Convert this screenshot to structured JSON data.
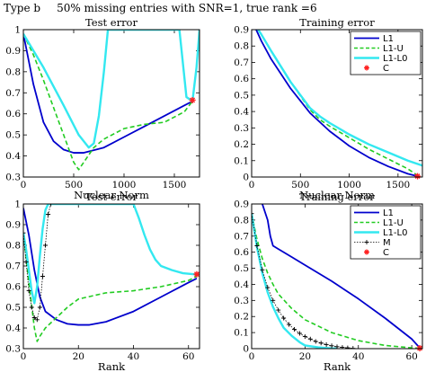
{
  "figure": {
    "type_label": "Type b",
    "caption": "50% missing entries with SNR=1, true rank =6"
  },
  "colors": {
    "L1": "#0000cc",
    "L1-U": "#22cc22",
    "L1-L0": "#33e8f0",
    "M": "#000000",
    "C": "#ff2222"
  },
  "chart_data": [
    {
      "id": "p1",
      "type": "line",
      "title": "Test error",
      "xlabel": "Nuclear Norm",
      "ylabel": "",
      "xlim": [
        0,
        1750
      ],
      "ylim": [
        0.3,
        1.0
      ],
      "xticks": [
        0,
        500,
        1000,
        1500
      ],
      "yticks": [
        0.3,
        0.4,
        0.5,
        0.6,
        0.7,
        0.8,
        0.9,
        1
      ],
      "ytick_labels": [
        "0.3",
        "0.4",
        "0.5",
        "0.6",
        "0.7",
        "0.8",
        "0.9",
        "1"
      ],
      "series": [
        {
          "name": "L1",
          "style": "solid",
          "x": [
            0,
            100,
            200,
            300,
            400,
            500,
            600,
            800,
            1000,
            1200,
            1400,
            1600,
            1680
          ],
          "y": [
            0.98,
            0.74,
            0.56,
            0.47,
            0.43,
            0.415,
            0.415,
            0.44,
            0.49,
            0.54,
            0.59,
            0.64,
            0.66
          ]
        },
        {
          "name": "L1-U",
          "style": "dashed",
          "x": [
            0,
            100,
            200,
            300,
            400,
            500,
            550,
            600,
            700,
            800,
            1000,
            1200,
            1400,
            1600,
            1680
          ],
          "y": [
            0.98,
            0.88,
            0.76,
            0.63,
            0.5,
            0.37,
            0.335,
            0.37,
            0.44,
            0.48,
            0.53,
            0.55,
            0.56,
            0.61,
            0.66
          ]
        },
        {
          "name": "L1-L0",
          "style": "solid",
          "x": [
            0,
            200,
            400,
            550,
            650,
            700,
            750,
            800,
            840,
            1550,
            1620,
            1680,
            1720,
            1750
          ],
          "y": [
            0.98,
            0.82,
            0.64,
            0.5,
            0.44,
            0.46,
            0.59,
            0.8,
            1.0,
            1.0,
            0.68,
            0.66,
            0.82,
            1.0
          ]
        }
      ],
      "markers": [
        {
          "name": "C",
          "x": 1680,
          "y": 0.665
        }
      ]
    },
    {
      "id": "p2",
      "type": "line",
      "title": "Training error",
      "xlabel": "Nuclear Norm",
      "ylabel": "",
      "xlim": [
        0,
        1750
      ],
      "ylim": [
        0,
        0.9
      ],
      "xticks": [
        0,
        500,
        1000,
        1500
      ],
      "yticks": [
        0,
        0.1,
        0.2,
        0.3,
        0.4,
        0.5,
        0.6,
        0.7,
        0.8,
        0.9
      ],
      "ytick_labels": [
        "0",
        "0.1",
        "0.2",
        "0.3",
        "0.4",
        "0.5",
        "0.6",
        "0.7",
        "0.8",
        "0.9"
      ],
      "legend": [
        "L1",
        "L1-U",
        "L1-L0",
        "C"
      ],
      "legend_position": "top-right",
      "series": [
        {
          "name": "L1",
          "style": "solid",
          "x": [
            0,
            100,
            200,
            400,
            600,
            800,
            1000,
            1200,
            1400,
            1600,
            1700
          ],
          "y": [
            0.96,
            0.83,
            0.72,
            0.54,
            0.39,
            0.28,
            0.19,
            0.12,
            0.065,
            0.02,
            0.005
          ]
        },
        {
          "name": "L1-U",
          "style": "dashed",
          "x": [
            0,
            100,
            200,
            400,
            600,
            700,
            800,
            1000,
            1200,
            1400,
            1600,
            1700
          ],
          "y": [
            0.96,
            0.87,
            0.77,
            0.58,
            0.41,
            0.35,
            0.31,
            0.24,
            0.17,
            0.11,
            0.05,
            0.01
          ]
        },
        {
          "name": "L1-L0",
          "style": "solid",
          "x": [
            0,
            100,
            200,
            400,
            600,
            700,
            800,
            1000,
            1200,
            1400,
            1600,
            1750
          ],
          "y": [
            0.96,
            0.87,
            0.77,
            0.58,
            0.42,
            0.37,
            0.33,
            0.26,
            0.2,
            0.15,
            0.1,
            0.07
          ]
        }
      ],
      "markers": [
        {
          "name": "C",
          "x": 1700,
          "y": 0.005
        }
      ]
    },
    {
      "id": "p3",
      "type": "line",
      "title": "Test error",
      "xlabel": "Rank",
      "ylabel": "",
      "xlim": [
        0,
        64
      ],
      "ylim": [
        0.3,
        1.0
      ],
      "xticks": [
        0,
        20,
        40,
        60
      ],
      "yticks": [
        0.3,
        0.4,
        0.5,
        0.6,
        0.7,
        0.8,
        0.9,
        1
      ],
      "ytick_labels": [
        "0.3",
        "0.4",
        "0.5",
        "0.6",
        "0.7",
        "0.8",
        "0.9",
        "1"
      ],
      "series": [
        {
          "name": "L1",
          "style": "solid",
          "x": [
            0,
            2,
            4,
            6,
            8,
            12,
            16,
            20,
            24,
            30,
            40,
            50,
            60,
            63
          ],
          "y": [
            0.98,
            0.85,
            0.68,
            0.55,
            0.48,
            0.44,
            0.42,
            0.415,
            0.415,
            0.43,
            0.48,
            0.55,
            0.62,
            0.64
          ]
        },
        {
          "name": "L1-U",
          "style": "dashed",
          "x": [
            0,
            2,
            4,
            5,
            6,
            8,
            12,
            16,
            20,
            30,
            40,
            50,
            60,
            63
          ],
          "y": [
            0.86,
            0.62,
            0.4,
            0.335,
            0.36,
            0.4,
            0.45,
            0.5,
            0.54,
            0.57,
            0.58,
            0.6,
            0.63,
            0.65
          ]
        },
        {
          "name": "L1-L0",
          "style": "solid",
          "x": [
            0,
            1,
            2,
            3,
            4,
            5,
            6,
            7,
            8,
            9,
            40,
            42,
            44,
            46,
            48,
            50,
            54,
            58,
            62,
            63
          ],
          "y": [
            0.86,
            0.78,
            0.68,
            0.58,
            0.52,
            0.6,
            0.75,
            0.88,
            0.97,
            1.0,
            1.0,
            0.93,
            0.85,
            0.78,
            0.73,
            0.7,
            0.68,
            0.665,
            0.66,
            0.66
          ]
        },
        {
          "name": "M",
          "style": "markers",
          "x": [
            0,
            1,
            2,
            3,
            4,
            5,
            6,
            7,
            8,
            9,
            10
          ],
          "y": [
            0.86,
            0.72,
            0.58,
            0.5,
            0.45,
            0.44,
            0.5,
            0.65,
            0.8,
            0.95,
            1.0
          ]
        }
      ],
      "markers": [
        {
          "name": "C",
          "x": 63,
          "y": 0.66
        }
      ]
    },
    {
      "id": "p4",
      "type": "line",
      "title": "Training error",
      "xlabel": "Rank",
      "ylabel": "",
      "xlim": [
        0,
        64
      ],
      "ylim": [
        0,
        0.9
      ],
      "xticks": [
        0,
        20,
        40,
        60
      ],
      "yticks": [
        0,
        0.1,
        0.2,
        0.3,
        0.4,
        0.5,
        0.6,
        0.7,
        0.8,
        0.9
      ],
      "ytick_labels": [
        "0",
        "0.1",
        "0.2",
        "0.3",
        "0.4",
        "0.5",
        "0.6",
        "0.7",
        "0.8",
        "0.9"
      ],
      "legend": [
        "L1",
        "L1-U",
        "L1-L0",
        "M",
        "C"
      ],
      "legend_position": "top-right",
      "series": [
        {
          "name": "L1",
          "style": "solid",
          "x": [
            4,
            6,
            7,
            8,
            10,
            15,
            20,
            30,
            40,
            50,
            60,
            63
          ],
          "y": [
            0.9,
            0.8,
            0.7,
            0.64,
            0.62,
            0.57,
            0.52,
            0.42,
            0.31,
            0.19,
            0.06,
            0.005
          ]
        },
        {
          "name": "L1-U",
          "style": "dashed",
          "x": [
            0,
            2,
            4,
            6,
            8,
            10,
            15,
            20,
            30,
            40,
            50,
            60,
            63
          ],
          "y": [
            0.84,
            0.68,
            0.56,
            0.47,
            0.4,
            0.34,
            0.25,
            0.18,
            0.1,
            0.05,
            0.02,
            0.005,
            0.003
          ]
        },
        {
          "name": "L1-L0",
          "style": "solid",
          "x": [
            0,
            2,
            4,
            6,
            8,
            10,
            12,
            15,
            18,
            20,
            25,
            30,
            32
          ],
          "y": [
            0.84,
            0.63,
            0.47,
            0.35,
            0.26,
            0.19,
            0.13,
            0.08,
            0.04,
            0.02,
            0.008,
            0.002,
            0.0
          ]
        },
        {
          "name": "M",
          "style": "markers",
          "x": [
            0,
            2,
            4,
            6,
            8,
            10,
            12,
            14,
            16,
            18,
            20,
            22,
            24,
            26,
            28,
            30,
            32,
            34,
            36,
            38
          ],
          "y": [
            0.84,
            0.64,
            0.49,
            0.38,
            0.3,
            0.24,
            0.19,
            0.15,
            0.12,
            0.095,
            0.075,
            0.06,
            0.045,
            0.035,
            0.025,
            0.018,
            0.012,
            0.008,
            0.005,
            0.002
          ]
        }
      ],
      "markers": [
        {
          "name": "C",
          "x": 63,
          "y": 0.003
        }
      ]
    }
  ]
}
